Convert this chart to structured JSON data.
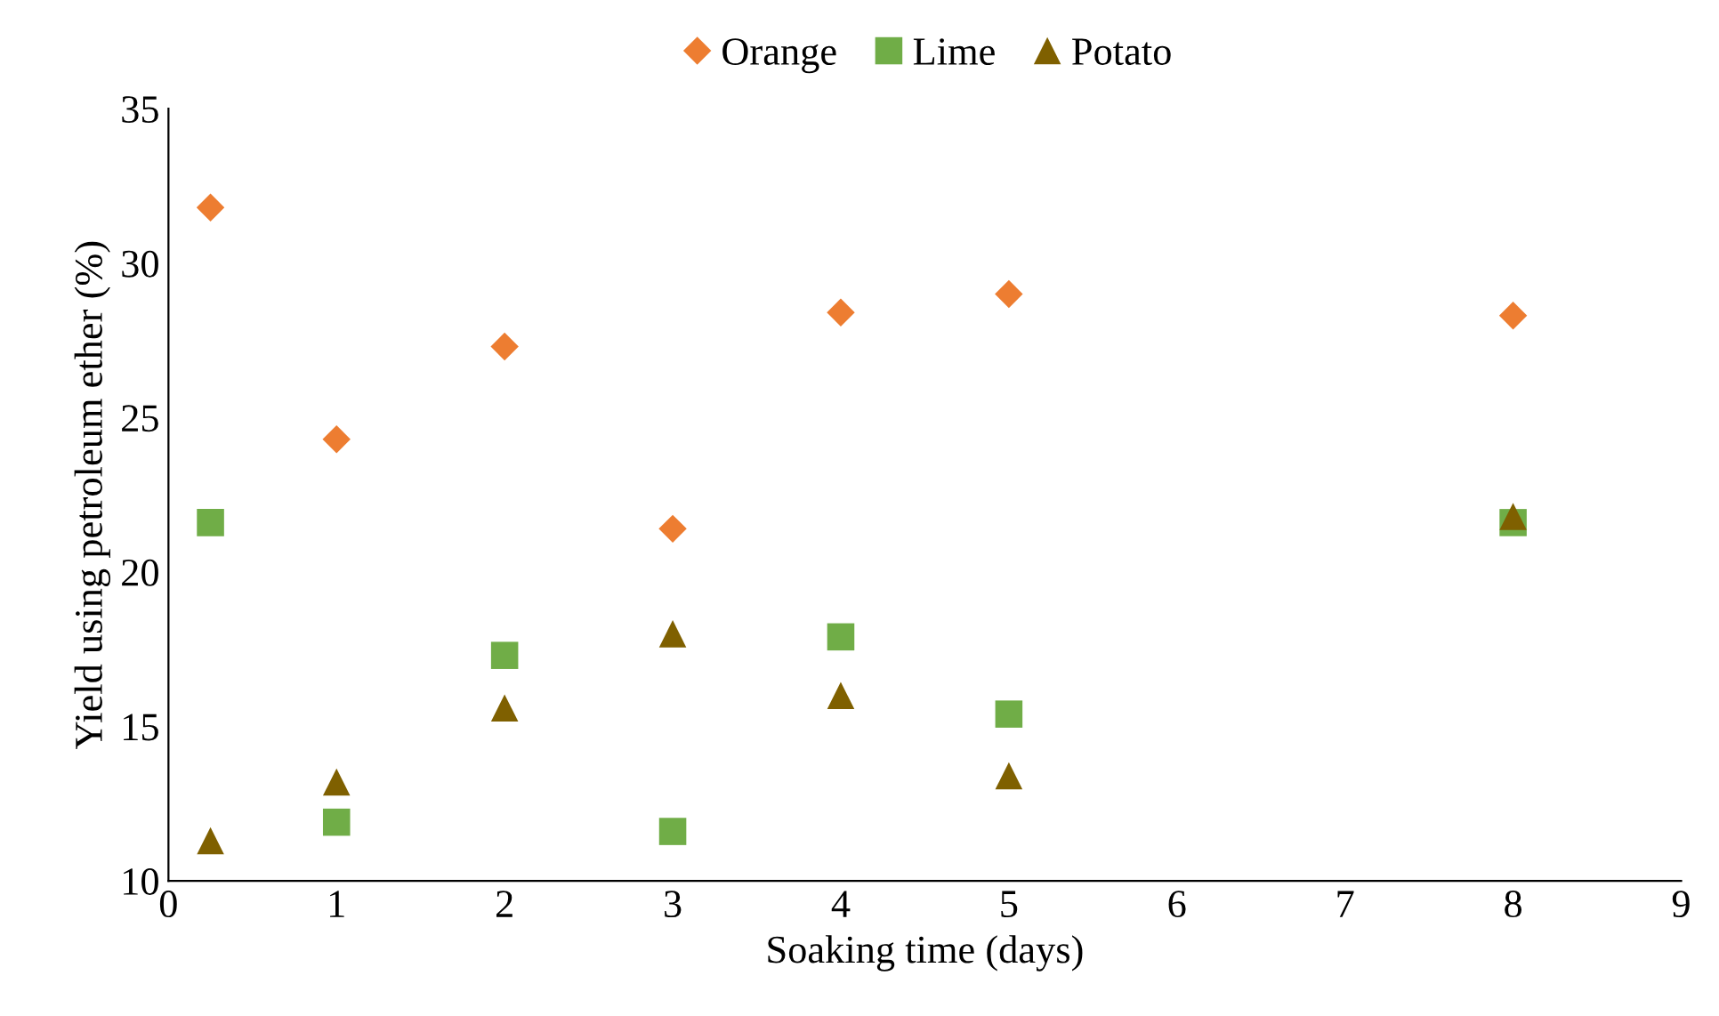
{
  "chart_data": {
    "type": "scatter",
    "xlabel": "Soaking time (days)",
    "ylabel": "Yield using petroleum ether (%)",
    "x": [
      0.25,
      1,
      2,
      3,
      4,
      5,
      8
    ],
    "series": [
      {
        "name": "Orange",
        "color": "#ed7d31",
        "marker": "diamond",
        "values": [
          31.8,
          24.3,
          27.3,
          21.4,
          28.4,
          29.0,
          28.3
        ]
      },
      {
        "name": "Lime",
        "color": "#70ad47",
        "marker": "square",
        "values": [
          21.6,
          11.9,
          17.3,
          11.6,
          17.9,
          15.4,
          21.6
        ]
      },
      {
        "name": "Potato",
        "color": "#7f6000",
        "marker": "triangle",
        "values": [
          11.3,
          13.2,
          15.6,
          18.0,
          16.0,
          13.4,
          21.8
        ]
      }
    ],
    "xlim": [
      0,
      9
    ],
    "xticks": [
      0,
      1,
      2,
      3,
      4,
      5,
      6,
      7,
      8,
      9
    ],
    "ylim": [
      10,
      35
    ],
    "yticks": [
      10,
      15,
      20,
      25,
      30,
      35
    ],
    "grid": false,
    "legend": "top"
  }
}
